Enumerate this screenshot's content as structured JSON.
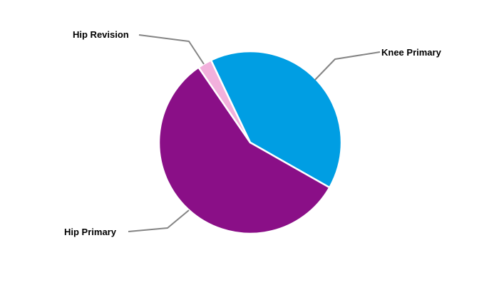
{
  "chart_data": {
    "type": "pie",
    "title": "",
    "legend": "none",
    "label_style": "outside-with-leader-lines",
    "direction": "clockwise",
    "start_angle_deg": -25.5,
    "slice_border_color": "#FFFFFF",
    "categories": [
      "Knee Primary",
      "Hip Primary",
      "Hip Revision"
    ],
    "slices": [
      {
        "label": "Knee Primary",
        "value": 40.3,
        "color": "#009EE3"
      },
      {
        "label": "Hip Primary",
        "value": 57.2,
        "color": "#8A0F87"
      },
      {
        "label": "Hip Revision",
        "value": 2.5,
        "color": "#F2B0DC"
      }
    ],
    "values_unit": "percent-of-total-estimated-from-angles"
  },
  "colors": {
    "background": "#FFFFFF",
    "leader_line": "#848484",
    "label_text": "#000000"
  }
}
